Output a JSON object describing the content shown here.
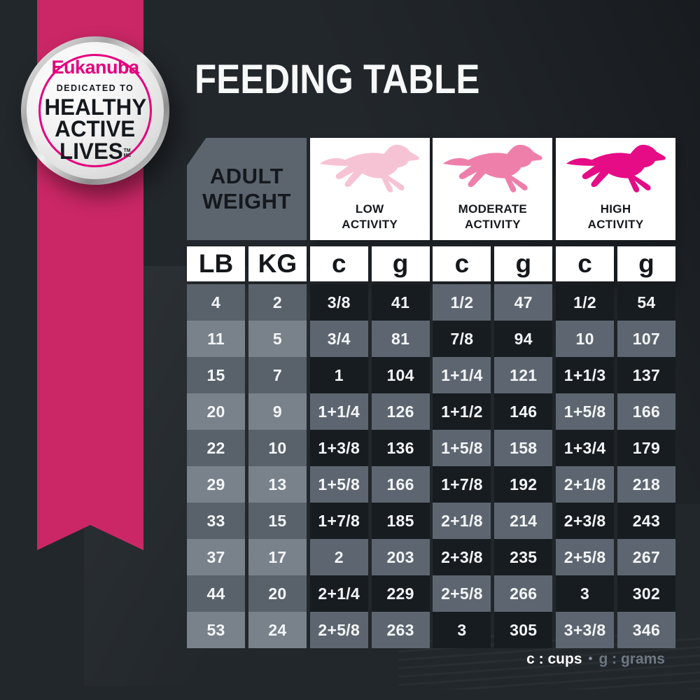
{
  "title": "FEEDING TABLE",
  "badge": {
    "brand": "Eukanuba",
    "dedicated": "DEDICATED TO",
    "line1": "HEALTHY",
    "line2": "ACTIVE",
    "line3": "LIVES",
    "tm": "TM",
    "mc": "MC"
  },
  "table": {
    "corner": {
      "line1": "ADULT",
      "line2": "WEIGHT"
    },
    "activities": [
      {
        "name": "low",
        "line1": "LOW",
        "line2": "ACTIVITY",
        "icon": "running-dog-icon",
        "color": "#f6c3d5"
      },
      {
        "name": "moderate",
        "line1": "MODERATE",
        "line2": "ACTIVITY",
        "icon": "running-dog-icon",
        "color": "#ee7fab"
      },
      {
        "name": "high",
        "line1": "HIGH",
        "line2": "ACTIVITY",
        "icon": "running-dog-icon",
        "color": "#e50c86"
      }
    ],
    "units": [
      "LB",
      "KG",
      "c",
      "g",
      "c",
      "g",
      "c",
      "g"
    ]
  },
  "chart_data": {
    "type": "table",
    "title": "FEEDING TABLE",
    "columns": [
      "Adult Weight (LB)",
      "Adult Weight (KG)",
      "Low Activity (c)",
      "Low Activity (g)",
      "Moderate Activity (c)",
      "Moderate Activity (g)",
      "High Activity (c)",
      "High Activity (g)"
    ],
    "rows": [
      [
        "4",
        "2",
        "3/8",
        "41",
        "1/2",
        "47",
        "1/2",
        "54"
      ],
      [
        "11",
        "5",
        "3/4",
        "81",
        "7/8",
        "94",
        "10",
        "107"
      ],
      [
        "15",
        "7",
        "1",
        "104",
        "1+1/4",
        "121",
        "1+1/3",
        "137"
      ],
      [
        "20",
        "9",
        "1+1/4",
        "126",
        "1+1/2",
        "146",
        "1+5/8",
        "166"
      ],
      [
        "22",
        "10",
        "1+3/8",
        "136",
        "1+5/8",
        "158",
        "1+3/4",
        "179"
      ],
      [
        "29",
        "13",
        "1+5/8",
        "166",
        "1+7/8",
        "192",
        "2+1/8",
        "218"
      ],
      [
        "33",
        "15",
        "1+7/8",
        "185",
        "2+1/8",
        "214",
        "2+3/8",
        "243"
      ],
      [
        "37",
        "17",
        "2",
        "203",
        "2+3/8",
        "235",
        "2+5/8",
        "267"
      ],
      [
        "44",
        "20",
        "2+1/4",
        "229",
        "2+5/8",
        "266",
        "3",
        "302"
      ],
      [
        "53",
        "24",
        "2+5/8",
        "263",
        "3",
        "305",
        "3+3/8",
        "346"
      ]
    ]
  },
  "legend": {
    "cups": "c : cups",
    "bullet": "•",
    "grams": "g : grams"
  },
  "colors": {
    "ribbon_pink": "#cb2766",
    "brand_pink": "#e5007e",
    "cell_dark": "#171c21",
    "cell_gray": "#5d6670",
    "weight_row_dark": "#59626b",
    "weight_row_light": "#79828b",
    "background": "#22272c"
  }
}
